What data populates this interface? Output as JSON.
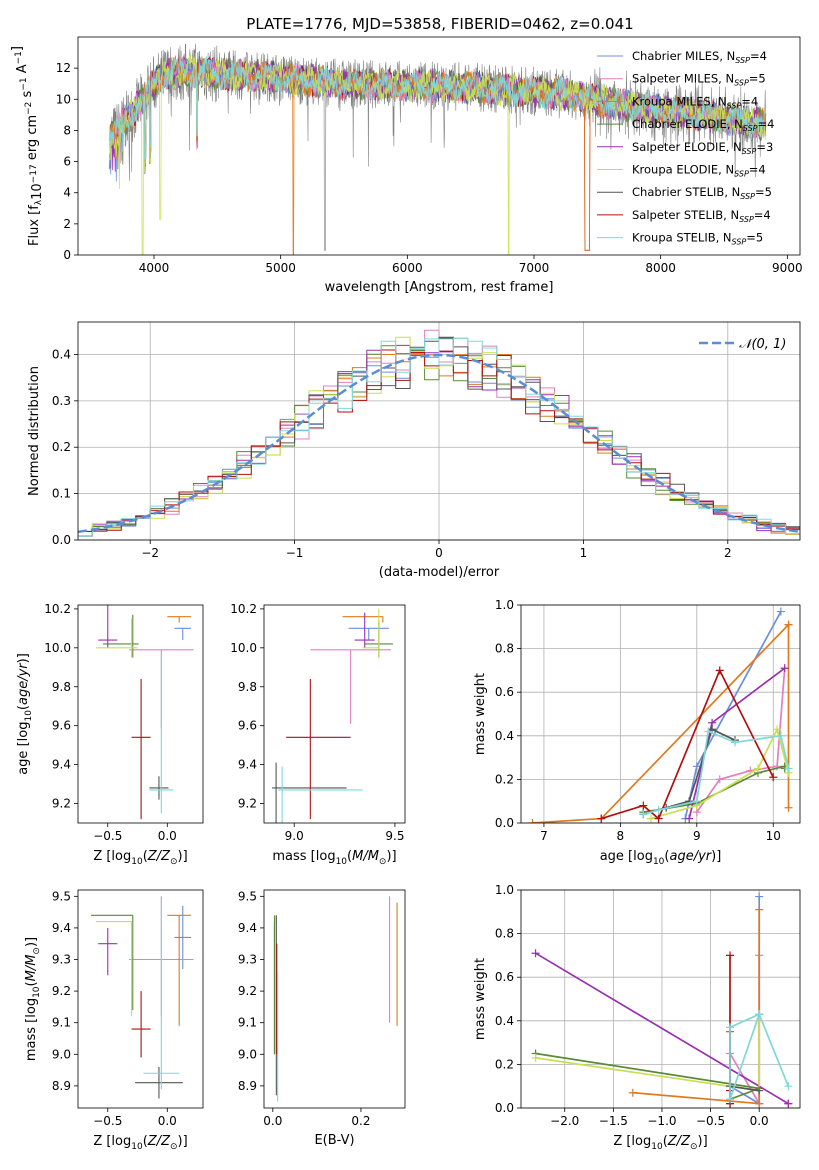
{
  "figure": {
    "title": "PLATE=1776, MJD=53858, FIBERID=0462, z=0.041"
  },
  "models": [
    {
      "name": "Chabrier MILES",
      "nssp": "4",
      "color": "#6b8fdc"
    },
    {
      "name": "Salpeter MILES",
      "nssp": "5",
      "color": "#e080c0"
    },
    {
      "name": "Kroupa MILES",
      "nssp": "4",
      "color": "#e07a1f"
    },
    {
      "name": "Chabrier ELODIE",
      "nssp": "4",
      "color": "#5a8a3a"
    },
    {
      "name": "Salpeter ELODIE",
      "nssp": "3",
      "color": "#9b30b0"
    },
    {
      "name": "Kroupa ELODIE",
      "nssp": "4",
      "color": "#c8e050"
    },
    {
      "name": "Chabrier STELIB",
      "nssp": "5",
      "color": "#555555"
    },
    {
      "name": "Salpeter STELIB",
      "nssp": "4",
      "color": "#b01010"
    },
    {
      "name": "Kroupa STELIB",
      "nssp": "5",
      "color": "#7fd8d8"
    }
  ],
  "chart_data": [
    {
      "id": "spectrum",
      "type": "line",
      "title": "PLATE=1776, MJD=53858, FIBERID=0462, z=0.041",
      "xlabel": "wavelength [Angstrom, rest frame]",
      "ylabel": "Flux [f_λ10^-17 erg cm^-2 s^-1 A^-1]",
      "xlim": [
        3400,
        9100
      ],
      "ylim": [
        0,
        14
      ],
      "xticks": [
        4000,
        5000,
        6000,
        7000,
        8000,
        9000
      ],
      "yticks": [
        0,
        2,
        4,
        6,
        8,
        10,
        12
      ],
      "continuum": {
        "x": [
          3650,
          3800,
          3900,
          4000,
          4100,
          4300,
          4500,
          4800,
          5000,
          5200,
          5500,
          6000,
          6500,
          7000,
          7400,
          7500,
          8000,
          8500,
          8800
        ],
        "y": [
          7.5,
          8.8,
          9.8,
          11.0,
          11.6,
          11.8,
          11.6,
          11.5,
          11.4,
          11.2,
          11.0,
          10.9,
          10.8,
          10.5,
          10.2,
          9.9,
          9.3,
          8.8,
          8.4
        ]
      },
      "dips": [
        3700,
        3930,
        3970,
        4340,
        5100,
        5350,
        6800,
        7420
      ],
      "legend_position": "upper right"
    },
    {
      "id": "residuals",
      "type": "histogram",
      "xlabel": "(data-model)/error",
      "ylabel": "Normed distribution",
      "xlim": [
        -2.5,
        2.5
      ],
      "ylim": [
        0,
        0.47
      ],
      "xticks": [
        -2,
        -1,
        0,
        1,
        2
      ],
      "yticks": [
        0.0,
        0.1,
        0.2,
        0.3,
        0.4
      ],
      "bin_width": 0.1,
      "gaussian_label": "𝒩(0, 1)",
      "gaussian_color": "#5b8dd6",
      "legend_position": "upper right"
    },
    {
      "id": "age_vs_Z",
      "type": "scatter",
      "xlabel": "Z [log10(Z/Z⊙)]",
      "ylabel": "age [log10(age/yr)]",
      "xlim": [
        -0.75,
        0.3
      ],
      "ylim": [
        9.1,
        10.22
      ],
      "xticks": [
        -0.5,
        0.0
      ],
      "yticks": [
        9.2,
        9.4,
        9.6,
        9.8,
        10.0,
        10.2
      ],
      "points": [
        {
          "model": 0,
          "x": 0.13,
          "y": 10.1,
          "xerr": [
            0.07,
            0.07
          ],
          "yerr": [
            0.06,
            0.0
          ]
        },
        {
          "model": 1,
          "x": -0.05,
          "y": 9.99,
          "xerr": [
            0.27,
            0.27
          ],
          "yerr": [
            0.4,
            0.0
          ]
        },
        {
          "model": 2,
          "x": 0.1,
          "y": 10.16,
          "xerr": [
            0.1,
            0.1
          ],
          "yerr": [
            0.03,
            0.0
          ]
        },
        {
          "model": 3,
          "x": -0.29,
          "y": 10.02,
          "xerr": [
            0.25,
            0.05
          ],
          "yerr": [
            0.07,
            0.15
          ]
        },
        {
          "model": 4,
          "x": -0.5,
          "y": 10.04,
          "xerr": [
            0.08,
            0.08
          ],
          "yerr": [
            0.04,
            0.24
          ]
        },
        {
          "model": 5,
          "x": -0.3,
          "y": 10.0,
          "xerr": [
            0.3,
            0.05
          ],
          "yerr": [
            0.05,
            0.15
          ]
        },
        {
          "model": 6,
          "x": -0.07,
          "y": 9.28,
          "xerr": [
            0.08,
            0.08
          ],
          "yerr": [
            0.06,
            0.06
          ]
        },
        {
          "model": 7,
          "x": -0.22,
          "y": 9.54,
          "xerr": [
            0.08,
            0.08
          ],
          "yerr": [
            0.42,
            0.3
          ]
        },
        {
          "model": 8,
          "x": -0.05,
          "y": 9.27,
          "xerr": [
            0.1,
            0.1
          ],
          "yerr": [
            0.12,
            0.7
          ]
        }
      ]
    },
    {
      "id": "age_vs_mass",
      "type": "scatter",
      "xlabel": "mass [log10(M/M⊙)]",
      "ylabel": "",
      "xlim": [
        8.85,
        9.55
      ],
      "ylim": [
        9.1,
        10.22
      ],
      "xticks": [
        9.0,
        9.5
      ],
      "yticks": [
        9.2,
        9.4,
        9.6,
        9.8,
        10.0,
        10.2
      ],
      "points": [
        {
          "model": 0,
          "x": 9.37,
          "y": 10.1,
          "xerr": [
            0.1,
            0.1
          ],
          "yerr": [
            0.06,
            0.0
          ]
        },
        {
          "model": 1,
          "x": 9.28,
          "y": 9.99,
          "xerr": [
            0.2,
            0.2
          ],
          "yerr": [
            0.38,
            0.0
          ]
        },
        {
          "model": 2,
          "x": 9.44,
          "y": 10.16,
          "xerr": [
            0.2,
            0.0
          ],
          "yerr": [
            0.03,
            0.0
          ]
        },
        {
          "model": 3,
          "x": 9.42,
          "y": 10.02,
          "xerr": [
            0.07,
            0.07
          ],
          "yerr": [
            0.07,
            0.12
          ]
        },
        {
          "model": 4,
          "x": 9.35,
          "y": 10.04,
          "xerr": [
            0.05,
            0.05
          ],
          "yerr": [
            0.04,
            0.14
          ]
        },
        {
          "model": 5,
          "x": 9.42,
          "y": 10.0,
          "xerr": [
            0.08,
            0.0
          ],
          "yerr": [
            0.05,
            0.2
          ]
        },
        {
          "model": 6,
          "x": 8.91,
          "y": 9.28,
          "xerr": [
            0.02,
            0.35
          ],
          "yerr": [
            0.6,
            0.13
          ]
        },
        {
          "model": 7,
          "x": 9.08,
          "y": 9.54,
          "xerr": [
            0.12,
            0.2
          ],
          "yerr": [
            0.42,
            0.3
          ]
        },
        {
          "model": 8,
          "x": 8.94,
          "y": 9.27,
          "xerr": [
            0.02,
            0.4
          ],
          "yerr": [
            0.62,
            0.12
          ]
        }
      ]
    },
    {
      "id": "weight_vs_age",
      "type": "line",
      "xlabel": "age [log10(age/yr)]",
      "ylabel": "mass weight",
      "xlim": [
        6.7,
        10.35
      ],
      "ylim": [
        0,
        1.0
      ],
      "xticks": [
        7,
        8,
        9,
        10
      ],
      "yticks": [
        0.0,
        0.2,
        0.4,
        0.6,
        0.8,
        1.0
      ],
      "series": [
        {
          "model": 0,
          "x": [
            8.85,
            9.0,
            10.1
          ],
          "y": [
            0.02,
            0.26,
            0.97
          ]
        },
        {
          "model": 1,
          "x": [
            9.0,
            9.3,
            9.7,
            10.05,
            10.15
          ],
          "y": [
            0.05,
            0.2,
            0.24,
            0.26,
            0.71
          ]
        },
        {
          "model": 2,
          "x": [
            6.85,
            7.75,
            10.2,
            10.2,
            10.2
          ],
          "y": [
            0.0,
            0.02,
            0.91,
            0.07,
            0.91
          ]
        },
        {
          "model": 3,
          "x": [
            8.3,
            9.0,
            9.8,
            10.15,
            10.15
          ],
          "y": [
            0.05,
            0.09,
            0.23,
            0.26,
            0.25
          ]
        },
        {
          "model": 4,
          "x": [
            8.9,
            9.2,
            10.15
          ],
          "y": [
            0.02,
            0.46,
            0.71
          ]
        },
        {
          "model": 5,
          "x": [
            8.4,
            9.0,
            9.8,
            10.05,
            10.2
          ],
          "y": [
            0.02,
            0.08,
            0.25,
            0.43,
            0.23
          ]
        },
        {
          "model": 6,
          "x": [
            8.3,
            8.6,
            8.9,
            9.2,
            9.5
          ],
          "y": [
            0.04,
            0.07,
            0.1,
            0.43,
            0.38
          ]
        },
        {
          "model": 7,
          "x": [
            7.75,
            8.3,
            8.5,
            9.3,
            10.0
          ],
          "y": [
            0.02,
            0.08,
            0.02,
            0.7,
            0.21
          ]
        },
        {
          "model": 8,
          "x": [
            8.3,
            8.5,
            9.0,
            9.15,
            9.5,
            10.1,
            10.2
          ],
          "y": [
            0.04,
            0.06,
            0.1,
            0.42,
            0.37,
            0.4,
            0.25
          ]
        }
      ]
    },
    {
      "id": "mass_vs_Z",
      "type": "scatter",
      "xlabel": "Z [log10(Z/Z⊙)]",
      "ylabel": "mass [log10(M/M⊙)]",
      "xlim": [
        -0.75,
        0.3
      ],
      "ylim": [
        8.83,
        9.52
      ],
      "xticks": [
        -0.5,
        0.0
      ],
      "yticks": [
        8.9,
        9.0,
        9.1,
        9.2,
        9.3,
        9.4,
        9.5
      ],
      "points": [
        {
          "model": 0,
          "x": 0.13,
          "y": 9.37,
          "xerr": [
            0.07,
            0.07
          ],
          "yerr": [
            0.1,
            0.1
          ]
        },
        {
          "model": 1,
          "x": -0.05,
          "y": 9.3,
          "xerr": [
            0.27,
            0.27
          ],
          "yerr": [
            0.18,
            0.2
          ]
        },
        {
          "model": 2,
          "x": 0.1,
          "y": 9.44,
          "xerr": [
            0.1,
            0.1
          ],
          "yerr": [
            0.35,
            0.0
          ]
        },
        {
          "model": 3,
          "x": -0.29,
          "y": 9.44,
          "xerr": [
            0.35,
            0.0
          ],
          "yerr": [
            0.3,
            0.0
          ]
        },
        {
          "model": 4,
          "x": -0.5,
          "y": 9.35,
          "xerr": [
            0.08,
            0.08
          ],
          "yerr": [
            0.1,
            0.05
          ]
        },
        {
          "model": 5,
          "x": -0.3,
          "y": 9.42,
          "xerr": [
            0.3,
            0.0
          ],
          "yerr": [
            0.3,
            0.0
          ]
        },
        {
          "model": 6,
          "x": -0.07,
          "y": 8.91,
          "xerr": [
            0.2,
            0.2
          ],
          "yerr": [
            0.05,
            0.05
          ]
        },
        {
          "model": 7,
          "x": -0.22,
          "y": 9.08,
          "xerr": [
            0.08,
            0.08
          ],
          "yerr": [
            0.09,
            0.12
          ]
        },
        {
          "model": 8,
          "x": -0.05,
          "y": 8.94,
          "xerr": [
            0.15,
            0.15
          ],
          "yerr": [
            0.05,
            0.55
          ]
        }
      ]
    },
    {
      "id": "mass_vs_ebv",
      "type": "scatter",
      "xlabel": "E(B-V)",
      "ylabel": "",
      "xlim": [
        -0.02,
        0.3
      ],
      "ylim": [
        8.83,
        9.52
      ],
      "xticks": [
        0.0,
        0.2
      ],
      "yticks": [
        8.9,
        9.0,
        9.1,
        9.2,
        9.3,
        9.4,
        9.5
      ],
      "vlines": [
        {
          "model": 1,
          "x": 0.265,
          "y0": 9.1,
          "y1": 9.5
        },
        {
          "model": 2,
          "x": 0.282,
          "y0": 9.09,
          "y1": 9.48
        },
        {
          "model": 5,
          "x": 0.003,
          "y0": 9.0,
          "y1": 9.42
        },
        {
          "model": 3,
          "x": 0.004,
          "y0": 9.0,
          "y1": 9.44
        },
        {
          "model": 6,
          "x": 0.008,
          "y0": 8.87,
          "y1": 9.44
        },
        {
          "model": 7,
          "x": 0.009,
          "y0": 9.0,
          "y1": 9.35
        },
        {
          "model": 8,
          "x": 0.011,
          "y0": 8.85,
          "y1": 9.26
        }
      ]
    },
    {
      "id": "weight_vs_Z",
      "type": "line",
      "xlabel": "Z [log10(Z/Z⊙)]",
      "ylabel": "mass weight",
      "xlim": [
        -2.45,
        0.42
      ],
      "ylim": [
        0,
        1.0
      ],
      "xticks": [
        -2.0,
        -1.5,
        -1.0,
        -0.5,
        0.0
      ],
      "yticks": [
        0.0,
        0.2,
        0.4,
        0.6,
        0.8,
        1.0
      ],
      "series": [
        {
          "model": 0,
          "x": [
            -0.3,
            0.0,
            0.0
          ],
          "y": [
            0.1,
            0.02,
            0.97
          ]
        },
        {
          "model": 1,
          "x": [
            -0.3,
            0.0,
            0.0
          ],
          "y": [
            0.25,
            0.02,
            0.7
          ]
        },
        {
          "model": 2,
          "x": [
            -1.3,
            0.0,
            0.0
          ],
          "y": [
            0.07,
            0.02,
            0.91
          ]
        },
        {
          "model": 3,
          "x": [
            -2.3,
            0.0,
            -0.3,
            -0.3
          ],
          "y": [
            0.25,
            0.09,
            0.04,
            0.35
          ]
        },
        {
          "model": 4,
          "x": [
            -2.3,
            0.3,
            0.3
          ],
          "y": [
            0.71,
            0.02,
            0.02
          ]
        },
        {
          "model": 5,
          "x": [
            -2.3,
            0.0,
            0.0
          ],
          "y": [
            0.23,
            0.08,
            0.43
          ]
        },
        {
          "model": 6,
          "x": [
            -0.3,
            -0.3,
            0.0
          ],
          "y": [
            0.02,
            0.1,
            0.08
          ]
        },
        {
          "model": 7,
          "x": [
            -0.3,
            -0.3,
            -0.3
          ],
          "y": [
            0.02,
            0.7,
            0.08
          ]
        },
        {
          "model": 8,
          "x": [
            -0.3,
            -0.3,
            0.0,
            0.3,
            0.0,
            -0.3
          ],
          "y": [
            0.04,
            0.37,
            0.43,
            0.1,
            0.43,
            0.04
          ]
        }
      ]
    }
  ]
}
